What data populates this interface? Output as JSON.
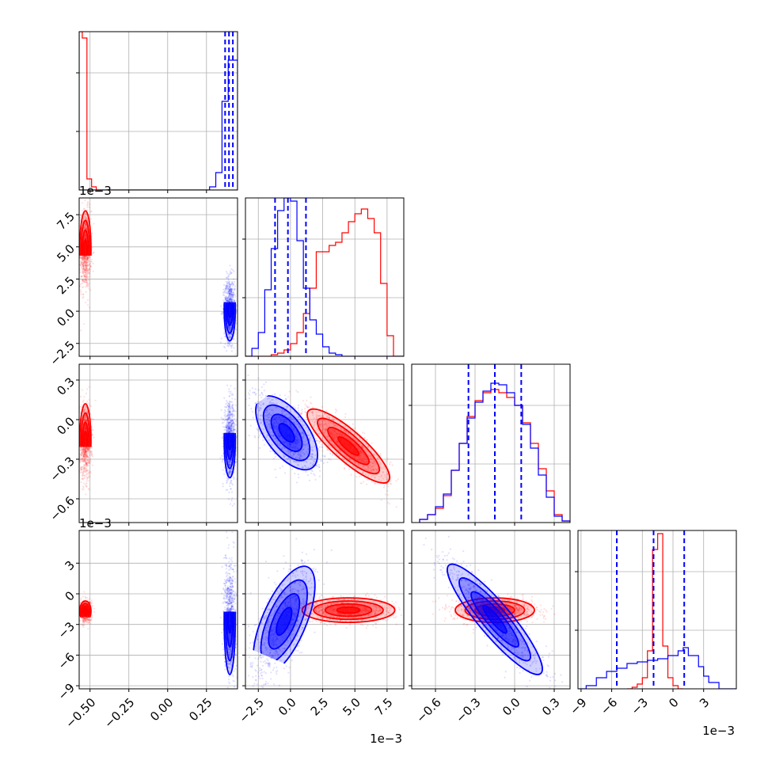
{
  "chart_data": {
    "type": "corner",
    "colors": {
      "series_a": "#ff0000",
      "series_b": "#0000ff",
      "grid": "#b0b0b0"
    },
    "grid": true,
    "parameters": [
      {
        "range": [
          -0.57,
          0.45
        ],
        "ticks": [
          -0.5,
          -0.25,
          0.0,
          0.25
        ],
        "tick_labels": [
          "−0.50",
          "−0.25",
          "0.00",
          "0.25"
        ]
      },
      {
        "range": [
          -3.5,
          8.8
        ],
        "ticks": [
          -2.5,
          0.0,
          2.5,
          5.0,
          7.5
        ],
        "tick_labels": [
          "−2.5",
          "0.0",
          "2.5",
          "5.0",
          "7.5"
        ],
        "exponent_label": "1e−3"
      },
      {
        "range": [
          -0.78,
          0.42
        ],
        "ticks": [
          -0.6,
          -0.3,
          0.0,
          0.3
        ],
        "tick_labels": [
          "−0.6",
          "−0.3",
          "0.0",
          "0.3"
        ]
      },
      {
        "range": [
          -9.3,
          6.2
        ],
        "ticks": [
          -9,
          -6,
          -3,
          0,
          3
        ],
        "tick_labels": [
          "−9",
          "−6",
          "−3",
          "0",
          "3"
        ],
        "exponent_label": "1e−3"
      }
    ],
    "series": [
      {
        "name": "",
        "color": "#ff0000",
        "histograms": [
          {
            "edges": [
              -0.57,
              -0.55,
              -0.52,
              -0.49,
              -0.46,
              -0.43,
              0.45
            ],
            "values": [
              1.0,
              0.96,
              0.07,
              0.02,
              0.0,
              0.0
            ]
          },
          {
            "edges": [
              -3.5,
              -3.0,
              -2.5,
              -2.0,
              -1.5,
              -1.0,
              -0.5,
              0.0,
              0.5,
              1.0,
              1.5,
              2.0,
              2.5,
              3.0,
              3.5,
              4.0,
              4.5,
              5.0,
              5.5,
              6.0,
              6.5,
              7.0,
              7.5,
              8.0,
              8.8
            ],
            "values": [
              0.0,
              0.0,
              0.0,
              0.0,
              0.01,
              0.02,
              0.04,
              0.08,
              0.15,
              0.27,
              0.43,
              0.66,
              0.66,
              0.7,
              0.72,
              0.78,
              0.85,
              0.9,
              0.93,
              0.87,
              0.78,
              0.46,
              0.13,
              0.0
            ]
          },
          {
            "edges": [
              -0.72,
              -0.66,
              -0.6,
              -0.54,
              -0.48,
              -0.42,
              -0.36,
              -0.3,
              -0.24,
              -0.18,
              -0.12,
              -0.06,
              0.0,
              0.06,
              0.12,
              0.18,
              0.24,
              0.3,
              0.36,
              0.42
            ],
            "values": [
              0.02,
              0.05,
              0.09,
              0.17,
              0.33,
              0.5,
              0.67,
              0.77,
              0.82,
              0.84,
              0.82,
              0.79,
              0.74,
              0.63,
              0.5,
              0.34,
              0.2,
              0.05,
              0.01
            ]
          },
          {
            "edges": [
              -4.5,
              -4.0,
              -3.5,
              -3.0,
              -2.5,
              -2.0,
              -1.5,
              -1.0,
              -0.5,
              0.0,
              0.5,
              1.0
            ],
            "values": [
              0.0,
              0.01,
              0.03,
              0.07,
              0.24,
              0.88,
              0.98,
              0.27,
              0.07,
              0.02,
              0.0
            ]
          }
        ],
        "blobs_2d": [
          {
            "pair": [
              0,
              1
            ],
            "center": [
              -0.53,
              0.0048
            ],
            "sd": [
              0.018,
              0.0015
            ],
            "rho": 0.0
          },
          {
            "pair": [
              0,
              2
            ],
            "center": [
              -0.53,
              -0.16
            ],
            "sd": [
              0.018,
              0.14
            ],
            "rho": 0.0
          },
          {
            "pair": [
              1,
              2
            ],
            "center": [
              0.0045,
              -0.2
            ],
            "sd": [
              0.0016,
              0.14
            ],
            "rho": -0.85
          },
          {
            "pair": [
              0,
              3
            ],
            "center": [
              -0.53,
              -0.0017
            ],
            "sd": [
              0.018,
              0.0005
            ],
            "rho": 0.0
          },
          {
            "pair": [
              1,
              3
            ],
            "center": [
              0.0045,
              -0.0016
            ],
            "sd": [
              0.0018,
              0.0006
            ],
            "rho": 0.0
          },
          {
            "pair": [
              2,
              3
            ],
            "center": [
              -0.15,
              -0.0016
            ],
            "sd": [
              0.15,
              0.0006
            ],
            "rho": 0.0
          }
        ]
      },
      {
        "name": "",
        "color": "#0000ff",
        "histograms": [
          {
            "edges": [
              -0.57,
              0.27,
              0.31,
              0.35,
              0.39,
              0.45
            ],
            "values": [
              0.0,
              0.02,
              0.11,
              0.56,
              0.82
            ]
          },
          {
            "edges": [
              -3.5,
              -3.0,
              -2.5,
              -2.0,
              -1.5,
              -1.0,
              -0.5,
              0.0,
              0.5,
              1.0,
              1.5,
              2.0,
              2.5,
              3.0,
              3.5,
              4.0,
              8.8
            ],
            "values": [
              0.0,
              0.05,
              0.15,
              0.42,
              0.68,
              0.92,
              1.0,
              0.98,
              0.73,
              0.43,
              0.23,
              0.14,
              0.06,
              0.02,
              0.01,
              0.0
            ]
          },
          {
            "edges": [
              -0.72,
              -0.66,
              -0.6,
              -0.54,
              -0.48,
              -0.42,
              -0.36,
              -0.3,
              -0.24,
              -0.18,
              -0.12,
              -0.06,
              0.0,
              0.06,
              0.12,
              0.18,
              0.24,
              0.3,
              0.36,
              0.42
            ],
            "values": [
              0.02,
              0.05,
              0.1,
              0.18,
              0.33,
              0.5,
              0.66,
              0.76,
              0.83,
              0.88,
              0.87,
              0.82,
              0.74,
              0.62,
              0.47,
              0.3,
              0.16,
              0.04,
              0.01
            ]
          },
          {
            "edges": [
              -9.3,
              -8.5,
              -7.5,
              -6.5,
              -5.5,
              -4.5,
              -3.5,
              -2.5,
              -1.5,
              -0.5,
              0.5,
              1.0,
              1.5,
              2.5,
              3.0,
              3.5,
              4.5,
              6.2
            ],
            "values": [
              0.0,
              0.02,
              0.07,
              0.11,
              0.13,
              0.16,
              0.17,
              0.18,
              0.19,
              0.21,
              0.24,
              0.26,
              0.21,
              0.14,
              0.08,
              0.04,
              0.0
            ]
          }
        ],
        "blobs_2d": [
          {
            "pair": [
              0,
              1
            ],
            "center": [
              0.4,
              0.0001
            ],
            "sd": [
              0.018,
              0.0012
            ],
            "rho": 0.0
          },
          {
            "pair": [
              0,
              2
            ],
            "center": [
              0.4,
              -0.16
            ],
            "sd": [
              0.018,
              0.14
            ],
            "rho": 0.0
          },
          {
            "pair": [
              1,
              2
            ],
            "center": [
              -0.0003,
              -0.1
            ],
            "sd": [
              0.0012,
              0.14
            ],
            "rho": -0.6
          },
          {
            "pair": [
              0,
              3
            ],
            "center": [
              0.4,
              -0.0025
            ],
            "sd": [
              0.018,
              0.0027
            ],
            "rho": 0.0
          },
          {
            "pair": [
              1,
              3
            ],
            "center": [
              -0.0005,
              -0.0027
            ],
            "sd": [
              0.0012,
              0.0027
            ],
            "rho": 0.65
          },
          {
            "pair": [
              2,
              3
            ],
            "center": [
              -0.15,
              -0.0025
            ],
            "sd": [
              0.18,
              0.0027
            ],
            "rho": -0.9
          }
        ]
      }
    ],
    "quantile_lines": {
      "color": "#0000ff",
      "style": "dashed",
      "values": [
        [
          0.37,
          0.395,
          0.42
        ],
        [
          -0.0012,
          -0.0002,
          0.0012
        ],
        [
          -0.35,
          -0.15,
          0.05
        ],
        [
          -0.0055,
          -0.0019,
          0.0011
        ]
      ]
    }
  }
}
